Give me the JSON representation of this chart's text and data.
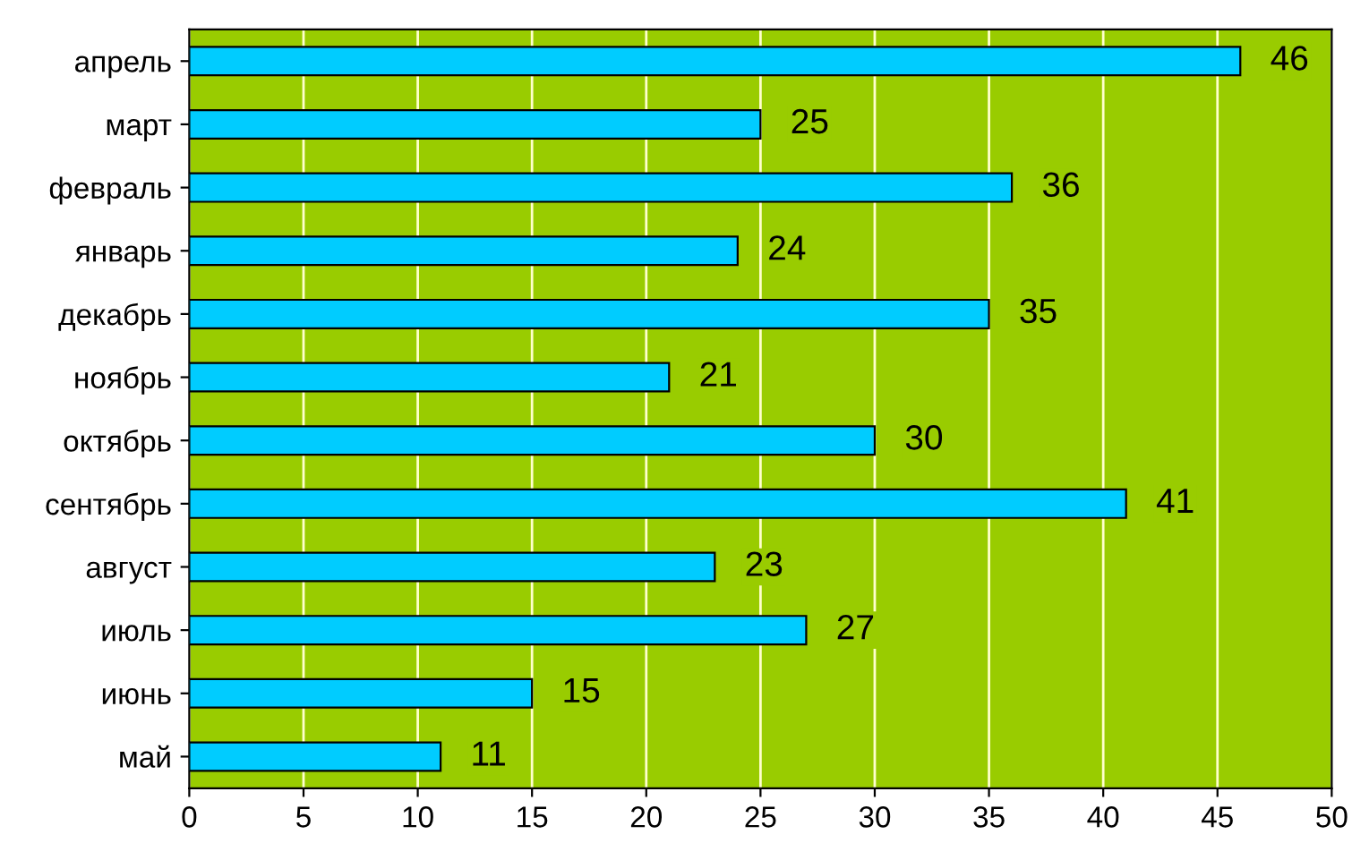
{
  "chart_data": {
    "type": "bar",
    "orientation": "horizontal",
    "categories": [
      "апрель",
      "март",
      "февраль",
      "январь",
      "декабрь",
      "ноябрь",
      "октябрь",
      "сентябрь",
      "август",
      "июль",
      "июнь",
      "май"
    ],
    "values": [
      46,
      25,
      36,
      24,
      35,
      21,
      30,
      41,
      23,
      27,
      15,
      11
    ],
    "color": "#00ccff",
    "xlim": [
      0,
      50
    ],
    "xticks": [
      0,
      5,
      10,
      15,
      20,
      25,
      30,
      35,
      40,
      45,
      50
    ],
    "grid": "x",
    "data_labels": true
  }
}
